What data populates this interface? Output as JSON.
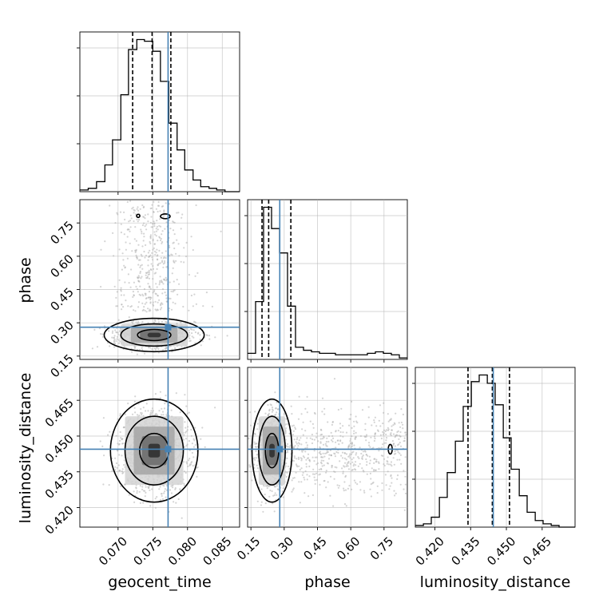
{
  "chart_data": {
    "type": "corner",
    "parameters": [
      "geocent_time",
      "phase",
      "luminosity_distance"
    ],
    "axis_labels": {
      "geocent_time": "geocent_time",
      "phase": "phase",
      "luminosity_distance": "luminosity_distance"
    },
    "ranges": {
      "geocent_time": [
        0.0645,
        0.0875
      ],
      "phase": [
        0.135,
        0.855
      ],
      "luminosity_distance": [
        0.4118,
        0.4788
      ]
    },
    "ticks": {
      "geocent_time": {
        "values": [
          0.07,
          0.075,
          0.08,
          0.085
        ],
        "labels": [
          "0.070",
          "0.075",
          "0.080",
          "0.085"
        ]
      },
      "phase": {
        "values": [
          0.15,
          0.3,
          0.45,
          0.6,
          0.75
        ],
        "labels": [
          "0.15",
          "0.30",
          "0.45",
          "0.60",
          "0.75"
        ]
      },
      "luminosity_distance": {
        "values": [
          0.42,
          0.435,
          0.45,
          0.465
        ],
        "labels": [
          "0.420",
          "0.435",
          "0.450",
          "0.465"
        ]
      }
    },
    "truth": {
      "geocent_time": 0.0772,
      "phase": 0.28,
      "luminosity_distance": 0.4445
    },
    "quantiles": {
      "geocent_time": [
        0.0721,
        0.0749,
        0.0776
      ],
      "phase": [
        0.2,
        0.23,
        0.33
      ],
      "luminosity_distance": [
        0.4339,
        0.4441,
        0.4513
      ]
    },
    "histograms": {
      "geocent_time": {
        "edges": [
          0.0645,
          0.0657,
          0.0669,
          0.0681,
          0.0692,
          0.0704,
          0.0715,
          0.0727,
          0.0738,
          0.075,
          0.0761,
          0.0773,
          0.0785,
          0.0796,
          0.0808,
          0.0819,
          0.0831,
          0.0842,
          0.0854,
          0.0865,
          0.0875
        ],
        "counts": [
          1,
          2,
          6,
          16,
          31,
          58,
          85,
          91,
          90,
          84,
          66,
          41,
          25,
          13,
          7,
          3,
          2,
          1,
          0,
          0
        ]
      },
      "phase": {
        "edges": [
          0.135,
          0.171,
          0.207,
          0.243,
          0.279,
          0.315,
          0.351,
          0.387,
          0.423,
          0.459,
          0.495,
          0.531,
          0.567,
          0.603,
          0.639,
          0.675,
          0.711,
          0.747,
          0.783,
          0.819,
          0.855
        ],
        "counts": [
          4,
          38,
          100,
          86,
          70,
          35,
          8,
          6,
          5,
          4,
          4,
          3,
          3,
          3,
          3,
          4,
          5,
          4,
          3,
          1
        ]
      },
      "luminosity_distance": {
        "edges": [
          0.4118,
          0.4152,
          0.4185,
          0.4219,
          0.4252,
          0.4286,
          0.4319,
          0.4353,
          0.4386,
          0.442,
          0.4453,
          0.4487,
          0.452,
          0.4554,
          0.4587,
          0.4621,
          0.4654,
          0.4688,
          0.4721,
          0.4755,
          0.4788
        ],
        "counts": [
          1,
          2,
          6,
          18,
          33,
          52,
          73,
          88,
          92,
          87,
          74,
          54,
          35,
          19,
          9,
          4,
          2,
          1,
          0,
          0
        ]
      }
    },
    "density_peaks": [
      {
        "x": "geocent_time",
        "y": "phase",
        "center": [
          0.0752,
          0.245
        ],
        "spread": [
          0.0024,
          0.025
        ]
      },
      {
        "x": "geocent_time",
        "y": "luminosity_distance",
        "center": [
          0.0752,
          0.4439
        ],
        "spread": [
          0.0021,
          0.0072
        ]
      },
      {
        "x": "phase",
        "y": "luminosity_distance",
        "center": [
          0.245,
          0.4439
        ],
        "spread": [
          0.03,
          0.0072
        ]
      }
    ],
    "contour_levels": [
      "39.3%",
      "86.5%",
      "98.9%"
    ],
    "grid": true,
    "legend": "none",
    "colors": {
      "histogram": "#000000",
      "quantile": "#000000",
      "truth": "#4682b4",
      "samples": "#b0b0b0",
      "grid": "#b0b0b0"
    }
  }
}
